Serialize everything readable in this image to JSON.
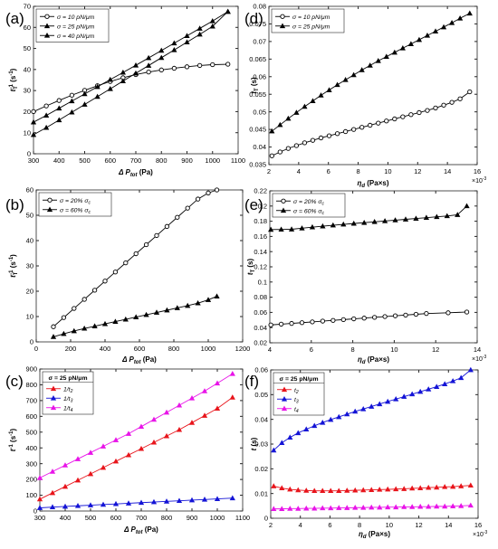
{
  "chart_data": [
    {
      "panel_label": "(a)",
      "type": "line",
      "xlabel": "Δ P",
      "xlabel_sub": "tot",
      "xlabel_unit": "(Pa)",
      "ylabel": "t",
      "ylabel_sub": "T",
      "ylabel_sup": "-1",
      "ylabel_unit": "(s",
      "ylabel_unit_sup": "-1",
      "ylabel_unit_close": ")",
      "xlim": [
        300,
        1100
      ],
      "ylim": [
        0,
        70
      ],
      "xticks": [
        "300",
        "400",
        "500",
        "600",
        "700",
        "800",
        "900",
        "1000",
        "1100"
      ],
      "yticks": [
        "0",
        "10",
        "20",
        "30",
        "40",
        "50",
        "60",
        "70"
      ],
      "legend_position": "top-left",
      "series": [
        {
          "name": "σ = 10 pN/μm",
          "marker": "circle",
          "color": "#000000",
          "x": [
            300,
            350,
            400,
            450,
            500,
            550,
            600,
            650,
            700,
            750,
            800,
            850,
            900,
            950,
            1000,
            1060
          ],
          "y": [
            20,
            22.7,
            25.3,
            27.8,
            30.1,
            32.3,
            34.3,
            36.1,
            37.6,
            38.8,
            39.8,
            40.6,
            41.3,
            41.9,
            42.3,
            42.5
          ]
        },
        {
          "name": "σ = 25 pN/μm",
          "marker": "triangle",
          "color": "#000000",
          "x": [
            300,
            350,
            400,
            450,
            500,
            550,
            600,
            650,
            700,
            750,
            800,
            850,
            900,
            950,
            1000,
            1060
          ],
          "y": [
            15,
            18.2,
            21.6,
            25,
            28.4,
            31.8,
            35.2,
            38.6,
            42,
            45.5,
            49,
            52.5,
            56,
            59.5,
            63,
            67.5
          ]
        },
        {
          "name": "σ = 40 pN/μm",
          "marker": "triangle",
          "color": "#000000",
          "x": [
            300,
            350,
            400,
            450,
            500,
            550,
            600,
            650,
            700,
            750,
            800,
            850,
            900,
            950,
            1000,
            1060
          ],
          "y": [
            9,
            12.4,
            16,
            19.7,
            23.4,
            27.1,
            30.8,
            34.5,
            38.2,
            41.9,
            45.6,
            49.3,
            53,
            56.7,
            60.5,
            67.5
          ]
        }
      ]
    },
    {
      "panel_label": "(d)",
      "type": "line",
      "xlabel": "η",
      "xlabel_sub": "d",
      "xlabel_unit": "(Pa×s)",
      "x_multiplier": "×10",
      "x_multiplier_sup": "-3",
      "ylabel": "t",
      "ylabel_sub": "T",
      "ylabel_unit": "(s)",
      "xlim": [
        2,
        16
      ],
      "ylim": [
        0.035,
        0.08
      ],
      "xticks": [
        "2",
        "4",
        "6",
        "8",
        "10",
        "12",
        "14",
        "16"
      ],
      "yticks": [
        "0.035",
        "0.04",
        "0.045",
        "0.05",
        "0.055",
        "0.06",
        "0.065",
        "0.07",
        "0.075",
        "0.08"
      ],
      "legend_position": "top-left",
      "series": [
        {
          "name": "σ = 10 pN/μm",
          "marker": "circle",
          "color": "#000000",
          "x": [
            2.2,
            2.75,
            3.3,
            3.85,
            4.4,
            4.95,
            5.5,
            6.05,
            6.6,
            7.15,
            7.7,
            8.25,
            8.8,
            9.35,
            9.9,
            10.45,
            11,
            11.55,
            12.1,
            12.65,
            13.2,
            13.75,
            14.3,
            14.85,
            15.5
          ],
          "y": [
            0.0375,
            0.0386,
            0.0396,
            0.0404,
            0.0412,
            0.0419,
            0.0426,
            0.0432,
            0.0438,
            0.0444,
            0.045,
            0.0456,
            0.0462,
            0.0468,
            0.0474,
            0.048,
            0.0486,
            0.0492,
            0.0498,
            0.0504,
            0.0511,
            0.0519,
            0.0527,
            0.0537,
            0.0557
          ]
        },
        {
          "name": "σ = 25 pN/μm",
          "marker": "triangle",
          "color": "#000000",
          "x": [
            2.2,
            2.75,
            3.3,
            3.85,
            4.4,
            4.95,
            5.5,
            6.05,
            6.6,
            7.15,
            7.7,
            8.25,
            8.8,
            9.35,
            9.9,
            10.45,
            11,
            11.55,
            12.1,
            12.65,
            13.2,
            13.75,
            14.3,
            14.85,
            15.5
          ],
          "y": [
            0.0445,
            0.0463,
            0.0481,
            0.0498,
            0.0515,
            0.0531,
            0.0547,
            0.0562,
            0.0577,
            0.0591,
            0.0605,
            0.0619,
            0.0632,
            0.0645,
            0.0657,
            0.0669,
            0.0681,
            0.0693,
            0.0705,
            0.0717,
            0.0729,
            0.0741,
            0.0753,
            0.0766,
            0.078
          ]
        }
      ]
    },
    {
      "panel_label": "(b)",
      "type": "line",
      "xlabel": "Δ P",
      "xlabel_sub": "tot",
      "xlabel_unit": "(Pa)",
      "ylabel": "t",
      "ylabel_sub": "T",
      "ylabel_sup": "-1",
      "ylabel_unit": "(s",
      "ylabel_unit_sup": "-1",
      "ylabel_unit_close": ")",
      "xlim": [
        0,
        1200
      ],
      "ylim": [
        0,
        60
      ],
      "xticks": [
        "0",
        "200",
        "400",
        "600",
        "800",
        "1000",
        "1200"
      ],
      "yticks": [
        "0",
        "10",
        "20",
        "30",
        "40",
        "50",
        "60"
      ],
      "legend_position": "top-left",
      "series": [
        {
          "name": "σ = 20% σ",
          "name_sub": "c",
          "marker": "circle",
          "color": "#000000",
          "x": [
            100,
            160,
            220,
            280,
            340,
            400,
            460,
            520,
            580,
            640,
            700,
            760,
            820,
            880,
            940,
            1000,
            1050
          ],
          "y": [
            6,
            9.6,
            13.2,
            16.8,
            20.4,
            24,
            27.6,
            31.2,
            34.8,
            38.4,
            42,
            45.6,
            49.2,
            52.8,
            56.4,
            58.8,
            60
          ]
        },
        {
          "name": "σ = 60% σ",
          "name_sub": "c",
          "marker": "triangle",
          "color": "#000000",
          "x": [
            100,
            160,
            220,
            280,
            340,
            400,
            460,
            520,
            580,
            640,
            700,
            760,
            820,
            880,
            940,
            1000,
            1050
          ],
          "y": [
            2,
            3.2,
            4.3,
            5.3,
            6.2,
            7.1,
            8,
            8.9,
            9.8,
            10.7,
            11.6,
            12.5,
            13.4,
            14.3,
            15.3,
            16.6,
            18
          ]
        }
      ]
    },
    {
      "panel_label": "(e)",
      "type": "line",
      "xlabel": "η",
      "xlabel_sub": "d",
      "xlabel_unit": "(Pa×s)",
      "x_multiplier": "×10",
      "x_multiplier_sup": "-3",
      "ylabel": "t",
      "ylabel_sub": "T",
      "ylabel_unit": "(s)",
      "xlim": [
        4,
        14
      ],
      "ylim": [
        0.02,
        0.22
      ],
      "xticks": [
        "4",
        "6",
        "8",
        "10",
        "12",
        "14"
      ],
      "yticks": [
        "0.02",
        "0.04",
        "0.06",
        "0.08",
        "0.1",
        "0.12",
        "0.14",
        "0.16",
        "0.18",
        "0.2",
        "0.22"
      ],
      "legend_position": "top-left",
      "series": [
        {
          "name": "σ = 20% σ",
          "name_sub": "c",
          "marker": "circle",
          "color": "#000000",
          "x": [
            4.05,
            4.55,
            5.05,
            5.55,
            6.05,
            6.55,
            7.05,
            7.55,
            8.05,
            8.55,
            9.05,
            9.55,
            10.05,
            10.55,
            11.05,
            11.55,
            12.6,
            13.5
          ],
          "y": [
            0.0435,
            0.0445,
            0.0455,
            0.0465,
            0.0475,
            0.0485,
            0.0495,
            0.0505,
            0.0515,
            0.0525,
            0.0535,
            0.0545,
            0.0555,
            0.0565,
            0.0575,
            0.0585,
            0.0595,
            0.0605
          ]
        },
        {
          "name": "σ = 60% σ",
          "name_sub": "c",
          "marker": "triangle",
          "color": "#000000",
          "x": [
            4.05,
            4.55,
            5.05,
            5.55,
            6.05,
            6.55,
            7.05,
            7.55,
            8.05,
            8.55,
            9.05,
            9.55,
            10.05,
            10.55,
            11.05,
            11.55,
            12.05,
            12.55,
            13.05,
            13.5
          ],
          "y": [
            0.169,
            0.1692,
            0.1694,
            0.1708,
            0.1722,
            0.1735,
            0.1747,
            0.1759,
            0.177,
            0.1781,
            0.1792,
            0.1803,
            0.1814,
            0.1825,
            0.1836,
            0.1847,
            0.1858,
            0.1869,
            0.1885,
            0.2
          ]
        }
      ]
    },
    {
      "panel_label": "(c)",
      "type": "line",
      "legend_title": "σ = 25 pN/μm",
      "xlabel": "Δ P",
      "xlabel_sub": "tot",
      "xlabel_unit": "(Pa)",
      "ylabel": "t",
      "ylabel_sup": "-1",
      "ylabel_unit": "(s",
      "ylabel_unit_sup": "-1",
      "ylabel_unit_close": ")",
      "xlim": [
        300,
        1100
      ],
      "ylim": [
        0,
        900
      ],
      "xticks": [
        "300",
        "400",
        "500",
        "600",
        "700",
        "800",
        "900",
        "1000",
        "1100"
      ],
      "yticks": [
        "0",
        "100",
        "200",
        "300",
        "400",
        "500",
        "600",
        "700",
        "800",
        "900"
      ],
      "legend_position": "top-left",
      "series": [
        {
          "name": "1/t",
          "name_sub": "2",
          "marker": "triangle",
          "color": "#e8141b",
          "x": [
            300,
            350,
            400,
            450,
            500,
            550,
            600,
            650,
            700,
            750,
            800,
            850,
            900,
            950,
            1000,
            1060
          ],
          "y": [
            75,
            115,
            155,
            195,
            235,
            275,
            315,
            355,
            395,
            435,
            475,
            515,
            560,
            605,
            650,
            720
          ]
        },
        {
          "name": "1/t",
          "name_sub": "3",
          "marker": "triangle",
          "color": "#1414d6",
          "x": [
            300,
            350,
            400,
            450,
            500,
            550,
            600,
            650,
            700,
            750,
            800,
            850,
            900,
            950,
            1000,
            1060
          ],
          "y": [
            20,
            25,
            29,
            33,
            37,
            41,
            45,
            49,
            53,
            57,
            61,
            65,
            69,
            73,
            77,
            82
          ]
        },
        {
          "name": "1/t",
          "name_sub": "4",
          "marker": "triangle",
          "color": "#e814e8",
          "x": [
            300,
            350,
            400,
            450,
            500,
            550,
            600,
            650,
            700,
            750,
            800,
            850,
            900,
            950,
            1000,
            1060
          ],
          "y": [
            210,
            250,
            290,
            330,
            370,
            410,
            450,
            490,
            535,
            580,
            625,
            670,
            715,
            760,
            810,
            870
          ]
        }
      ]
    },
    {
      "panel_label": "(f)",
      "type": "line",
      "legend_title": "σ = 25 pN/μm",
      "xlabel": "η",
      "xlabel_sub": "d",
      "xlabel_unit": "(Pa×s)",
      "x_multiplier": "×10",
      "x_multiplier_sup": "-3",
      "ylabel": "t",
      "ylabel_unit": "(s)",
      "xlim": [
        2,
        16
      ],
      "ylim": [
        0,
        0.06
      ],
      "xticks": [
        "2",
        "4",
        "6",
        "8",
        "10",
        "12",
        "14",
        "16"
      ],
      "yticks": [
        "0",
        "0.01",
        "0.02",
        "0.03",
        "0.04",
        "0.05",
        "0.06"
      ],
      "legend_position": "top-left",
      "series": [
        {
          "name": "t",
          "name_sub": "2",
          "marker": "triangle",
          "color": "#e8141b",
          "x": [
            2.2,
            2.75,
            3.3,
            3.85,
            4.4,
            4.95,
            5.5,
            6.05,
            6.6,
            7.15,
            7.7,
            8.25,
            8.8,
            9.35,
            9.9,
            10.45,
            11,
            11.55,
            12.1,
            12.65,
            13.2,
            13.75,
            14.3,
            14.85,
            15.5
          ],
          "y": [
            0.013,
            0.0122,
            0.0117,
            0.0114,
            0.0112,
            0.0111,
            0.0111,
            0.0111,
            0.0111,
            0.0112,
            0.0113,
            0.0114,
            0.0115,
            0.0116,
            0.0117,
            0.0118,
            0.0119,
            0.0121,
            0.0122,
            0.0124,
            0.0125,
            0.0127,
            0.0128,
            0.013,
            0.0133
          ]
        },
        {
          "name": "t",
          "name_sub": "3",
          "marker": "triangle",
          "color": "#1414d6",
          "x": [
            2.2,
            2.75,
            3.3,
            3.85,
            4.4,
            4.95,
            5.5,
            6.05,
            6.6,
            7.15,
            7.7,
            8.25,
            8.8,
            9.35,
            9.9,
            10.45,
            11,
            11.55,
            12.1,
            12.65,
            13.2,
            13.75,
            14.3,
            14.85,
            15.5
          ],
          "y": [
            0.0275,
            0.0305,
            0.0327,
            0.0345,
            0.036,
            0.0374,
            0.0387,
            0.0399,
            0.041,
            0.0421,
            0.0432,
            0.0442,
            0.0452,
            0.0462,
            0.0472,
            0.0482,
            0.0492,
            0.0502,
            0.0512,
            0.0522,
            0.0532,
            0.0543,
            0.0555,
            0.0568,
            0.06
          ]
        },
        {
          "name": "t",
          "name_sub": "4",
          "marker": "triangle",
          "color": "#e814e8",
          "x": [
            2.2,
            2.75,
            3.3,
            3.85,
            4.4,
            4.95,
            5.5,
            6.05,
            6.6,
            7.15,
            7.7,
            8.25,
            8.8,
            9.35,
            9.9,
            10.45,
            11,
            11.55,
            12.1,
            12.65,
            13.2,
            13.75,
            14.3,
            14.85,
            15.5
          ],
          "y": [
            0.0038,
            0.0038,
            0.0039,
            0.0039,
            0.004,
            0.004,
            0.0041,
            0.0041,
            0.0042,
            0.0042,
            0.0043,
            0.0043,
            0.0044,
            0.0044,
            0.0045,
            0.0045,
            0.0046,
            0.0046,
            0.0047,
            0.0047,
            0.0048,
            0.0048,
            0.0049,
            0.005,
            0.0052
          ]
        }
      ]
    }
  ]
}
